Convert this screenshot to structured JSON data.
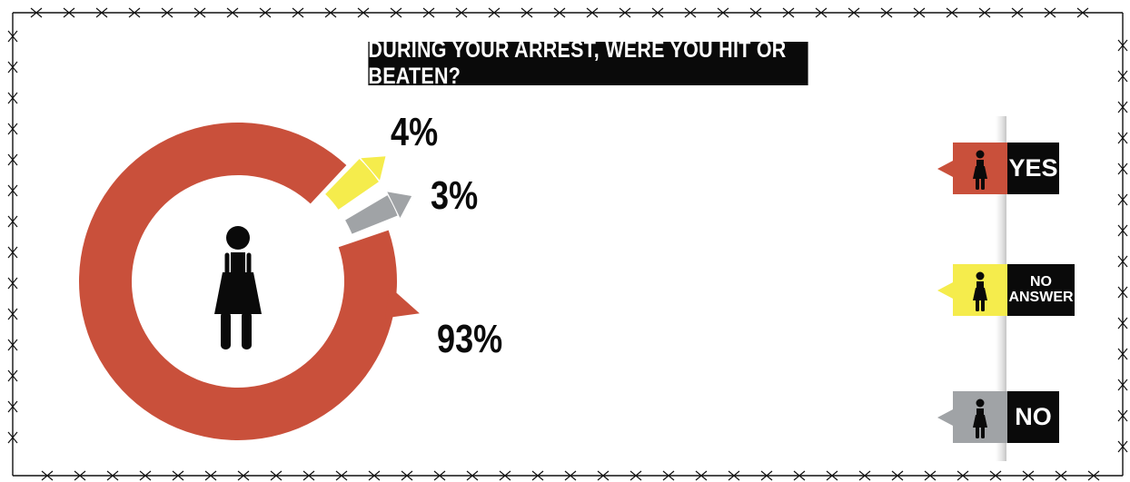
{
  "chart_data": {
    "type": "pie",
    "title": "DURING YOUR ARREST, WERE YOU HIT OR BEATEN?",
    "categories": [
      "YES",
      "NO ANSWER",
      "NO"
    ],
    "values": [
      93,
      4,
      3
    ],
    "value_labels": [
      "93%",
      "4%",
      "3%"
    ],
    "colors": [
      "#c9503b",
      "#f5ec4c",
      "#a0a3a6"
    ],
    "legend": "right"
  },
  "legend": {
    "items": [
      {
        "label": "YES",
        "color": "#c9503b",
        "icon": "woman-icon"
      },
      {
        "label": "NO\nANSWER",
        "color": "#f5ec4c",
        "icon": "woman-icon"
      },
      {
        "label": "NO",
        "color": "#a0a3a6",
        "icon": "woman-icon"
      }
    ]
  },
  "center_icon": "handcuffed-woman-icon"
}
